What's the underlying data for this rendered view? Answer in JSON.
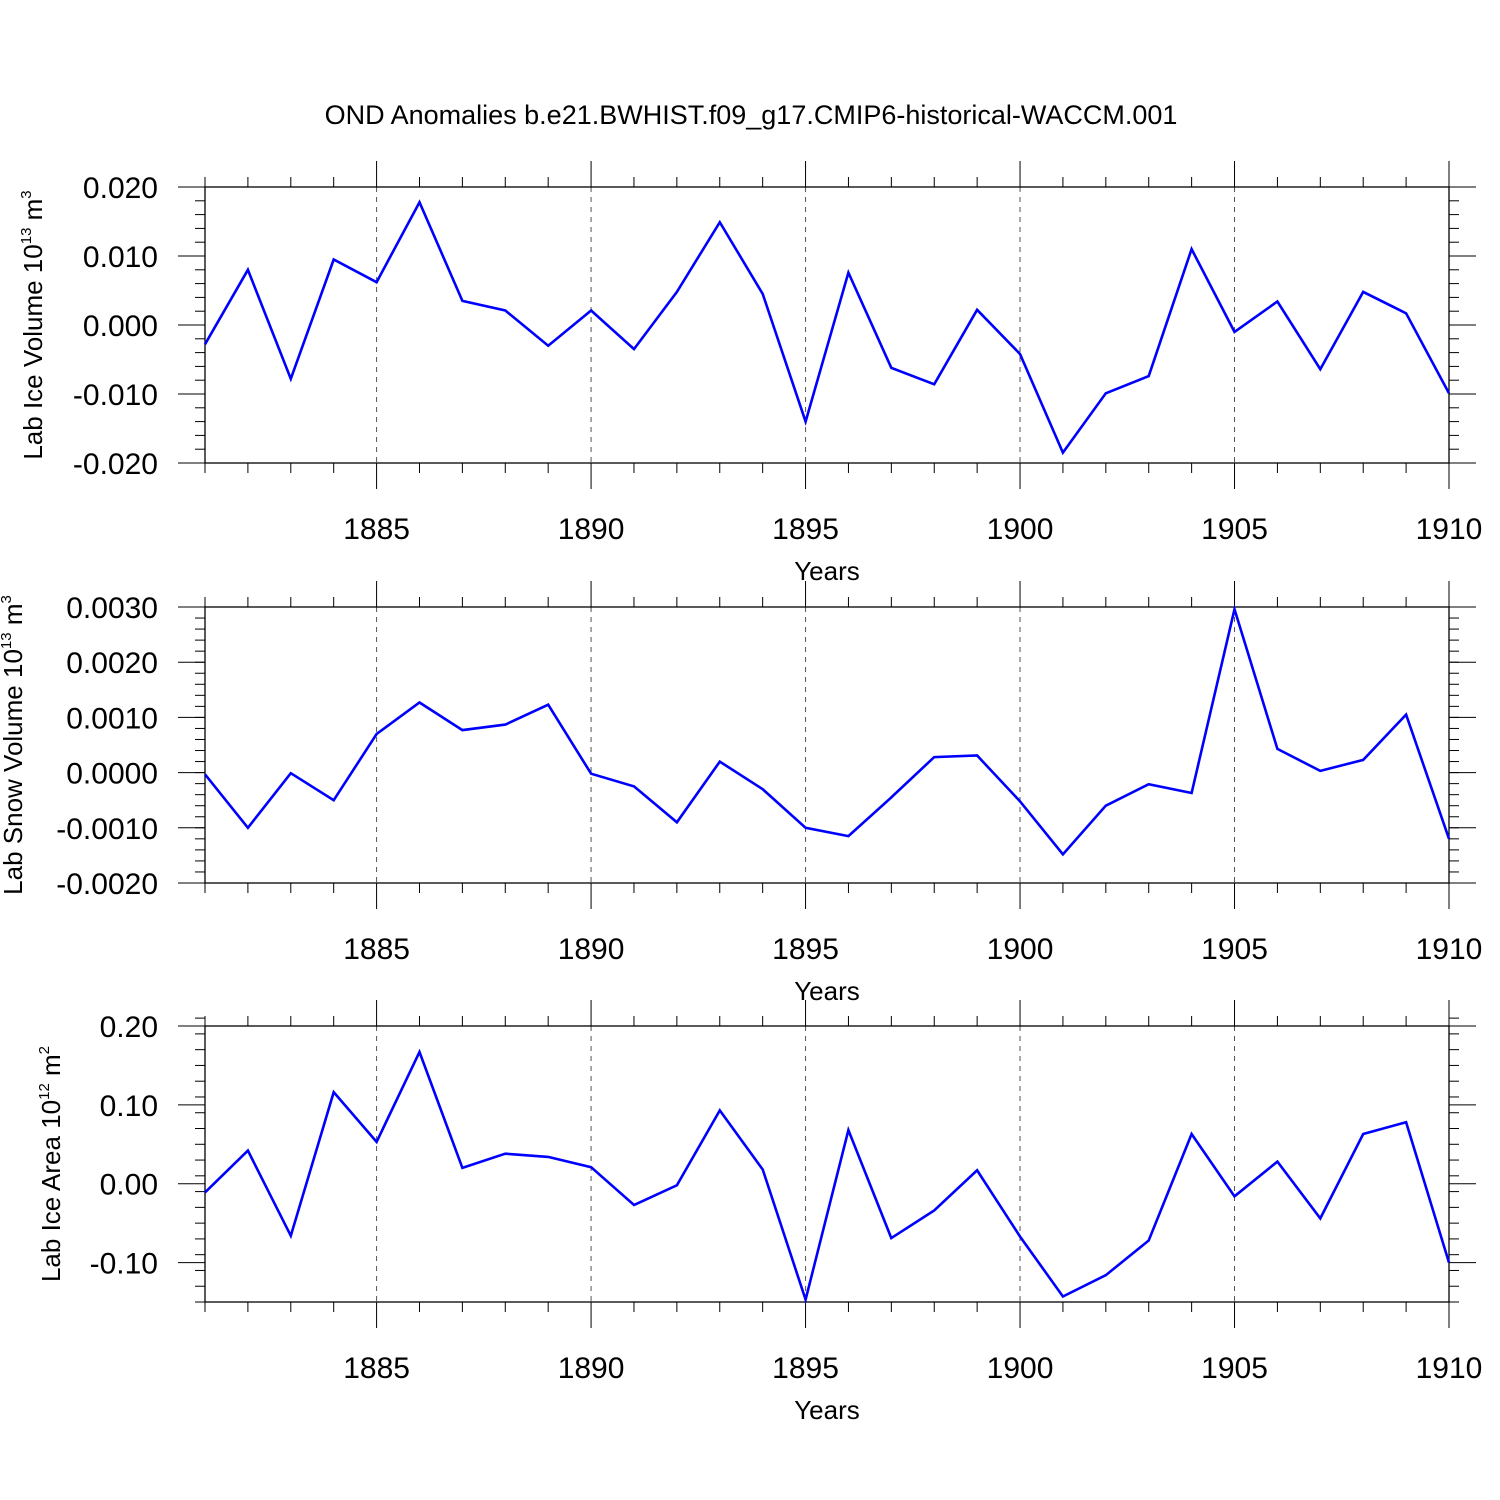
{
  "title": "OND Anomalies b.e21.BWHIST.f09_g17.CMIP6-historical-WACCM.001",
  "colors": {
    "series": "#0000ff",
    "axis": "#000000",
    "grid": "#555555"
  },
  "chart_data": [
    {
      "type": "line",
      "ylabel": "Lab Ice Volume 10",
      "ylabel_exp": "13",
      "ylabel_unit": " m",
      "ylabel_unit_exp": "3",
      "xlabel": "Years",
      "xlim": [
        1881,
        1910
      ],
      "ylim": [
        -0.02,
        0.02
      ],
      "xticks": [
        1885,
        1890,
        1895,
        1900,
        1905,
        1910
      ],
      "xtick_labels": [
        "1885",
        "1890",
        "1895",
        "1900",
        "1905",
        "1910"
      ],
      "yticks": [
        -0.02,
        -0.01,
        0.0,
        0.01,
        0.02
      ],
      "ytick_labels": [
        "-0.020",
        "-0.010",
        "0.000",
        "0.010",
        "0.020"
      ],
      "yminor_step": 0.002,
      "grid": "vertical dashed at major x ticks",
      "x": [
        1881,
        1882,
        1883,
        1884,
        1885,
        1886,
        1887,
        1888,
        1889,
        1890,
        1891,
        1892,
        1893,
        1894,
        1895,
        1896,
        1897,
        1898,
        1899,
        1900,
        1901,
        1902,
        1903,
        1904,
        1905,
        1906,
        1907,
        1908,
        1909,
        1910
      ],
      "values": [
        -0.0028,
        0.008,
        -0.0078,
        0.0095,
        0.0062,
        0.0178,
        0.0035,
        0.0021,
        -0.003,
        0.0021,
        -0.0035,
        0.0048,
        0.0149,
        0.0045,
        -0.014,
        0.0076,
        -0.0062,
        -0.0086,
        0.0022,
        -0.0042,
        -0.0185,
        -0.0099,
        -0.0074,
        0.011,
        -0.001,
        0.0034,
        -0.0064,
        0.0048,
        0.0017,
        -0.0099
      ]
    },
    {
      "type": "line",
      "ylabel": "Lab Snow Volume 10",
      "ylabel_exp": "13",
      "ylabel_unit": " m",
      "ylabel_unit_exp": "3",
      "xlabel": "Years",
      "xlim": [
        1881,
        1910
      ],
      "ylim": [
        -0.002,
        0.003
      ],
      "xticks": [
        1885,
        1890,
        1895,
        1900,
        1905,
        1910
      ],
      "xtick_labels": [
        "1885",
        "1890",
        "1895",
        "1900",
        "1905",
        "1910"
      ],
      "yticks": [
        -0.002,
        -0.001,
        0.0,
        0.001,
        0.002,
        0.003
      ],
      "ytick_labels": [
        "-0.0020",
        "-0.0010",
        "0.0000",
        "0.0010",
        "0.0020",
        "0.0030"
      ],
      "yminor_step": 0.0002,
      "grid": "vertical dashed at major x ticks",
      "x": [
        1881,
        1882,
        1883,
        1884,
        1885,
        1886,
        1887,
        1888,
        1889,
        1890,
        1891,
        1892,
        1893,
        1894,
        1895,
        1896,
        1897,
        1898,
        1899,
        1900,
        1901,
        1902,
        1903,
        1904,
        1905,
        1906,
        1907,
        1908,
        1909,
        1910
      ],
      "values": [
        -3e-05,
        -0.001,
        -1e-05,
        -0.0005,
        0.0007,
        0.00127,
        0.00077,
        0.00087,
        0.00123,
        -2e-05,
        -0.00025,
        -0.0009,
        0.0002,
        -0.0003,
        -0.001,
        -0.00115,
        -0.00045,
        0.00028,
        0.00031,
        -0.00052,
        -0.00148,
        -0.0006,
        -0.00021,
        -0.00037,
        0.00296,
        0.00043,
        3e-05,
        0.00023,
        0.00105,
        -0.0012
      ]
    },
    {
      "type": "line",
      "ylabel": "Lab Ice Area 10",
      "ylabel_exp": "12",
      "ylabel_unit": " m",
      "ylabel_unit_exp": "2",
      "xlabel": "Years",
      "xlim": [
        1881,
        1910
      ],
      "ylim": [
        -0.15,
        0.2
      ],
      "xticks": [
        1885,
        1890,
        1895,
        1900,
        1905,
        1910
      ],
      "xtick_labels": [
        "1885",
        "1890",
        "1895",
        "1900",
        "1905",
        "1910"
      ],
      "yticks": [
        -0.1,
        0.0,
        0.1,
        0.2
      ],
      "ytick_labels": [
        "-0.10",
        "0.00",
        "0.10",
        "0.20"
      ],
      "yminor_step": 0.02,
      "grid": "vertical dashed at major x ticks",
      "x": [
        1881,
        1882,
        1883,
        1884,
        1885,
        1886,
        1887,
        1888,
        1889,
        1890,
        1891,
        1892,
        1893,
        1894,
        1895,
        1896,
        1897,
        1898,
        1899,
        1900,
        1901,
        1902,
        1903,
        1904,
        1905,
        1906,
        1907,
        1908,
        1909,
        1910
      ],
      "values": [
        -0.011,
        0.042,
        -0.066,
        0.116,
        0.053,
        0.167,
        0.02,
        0.038,
        0.034,
        0.021,
        -0.027,
        -0.002,
        0.093,
        0.018,
        -0.147,
        0.068,
        -0.069,
        -0.034,
        0.017,
        -0.067,
        -0.143,
        -0.116,
        -0.072,
        0.063,
        -0.016,
        0.028,
        -0.044,
        0.063,
        0.078,
        -0.1
      ]
    }
  ]
}
